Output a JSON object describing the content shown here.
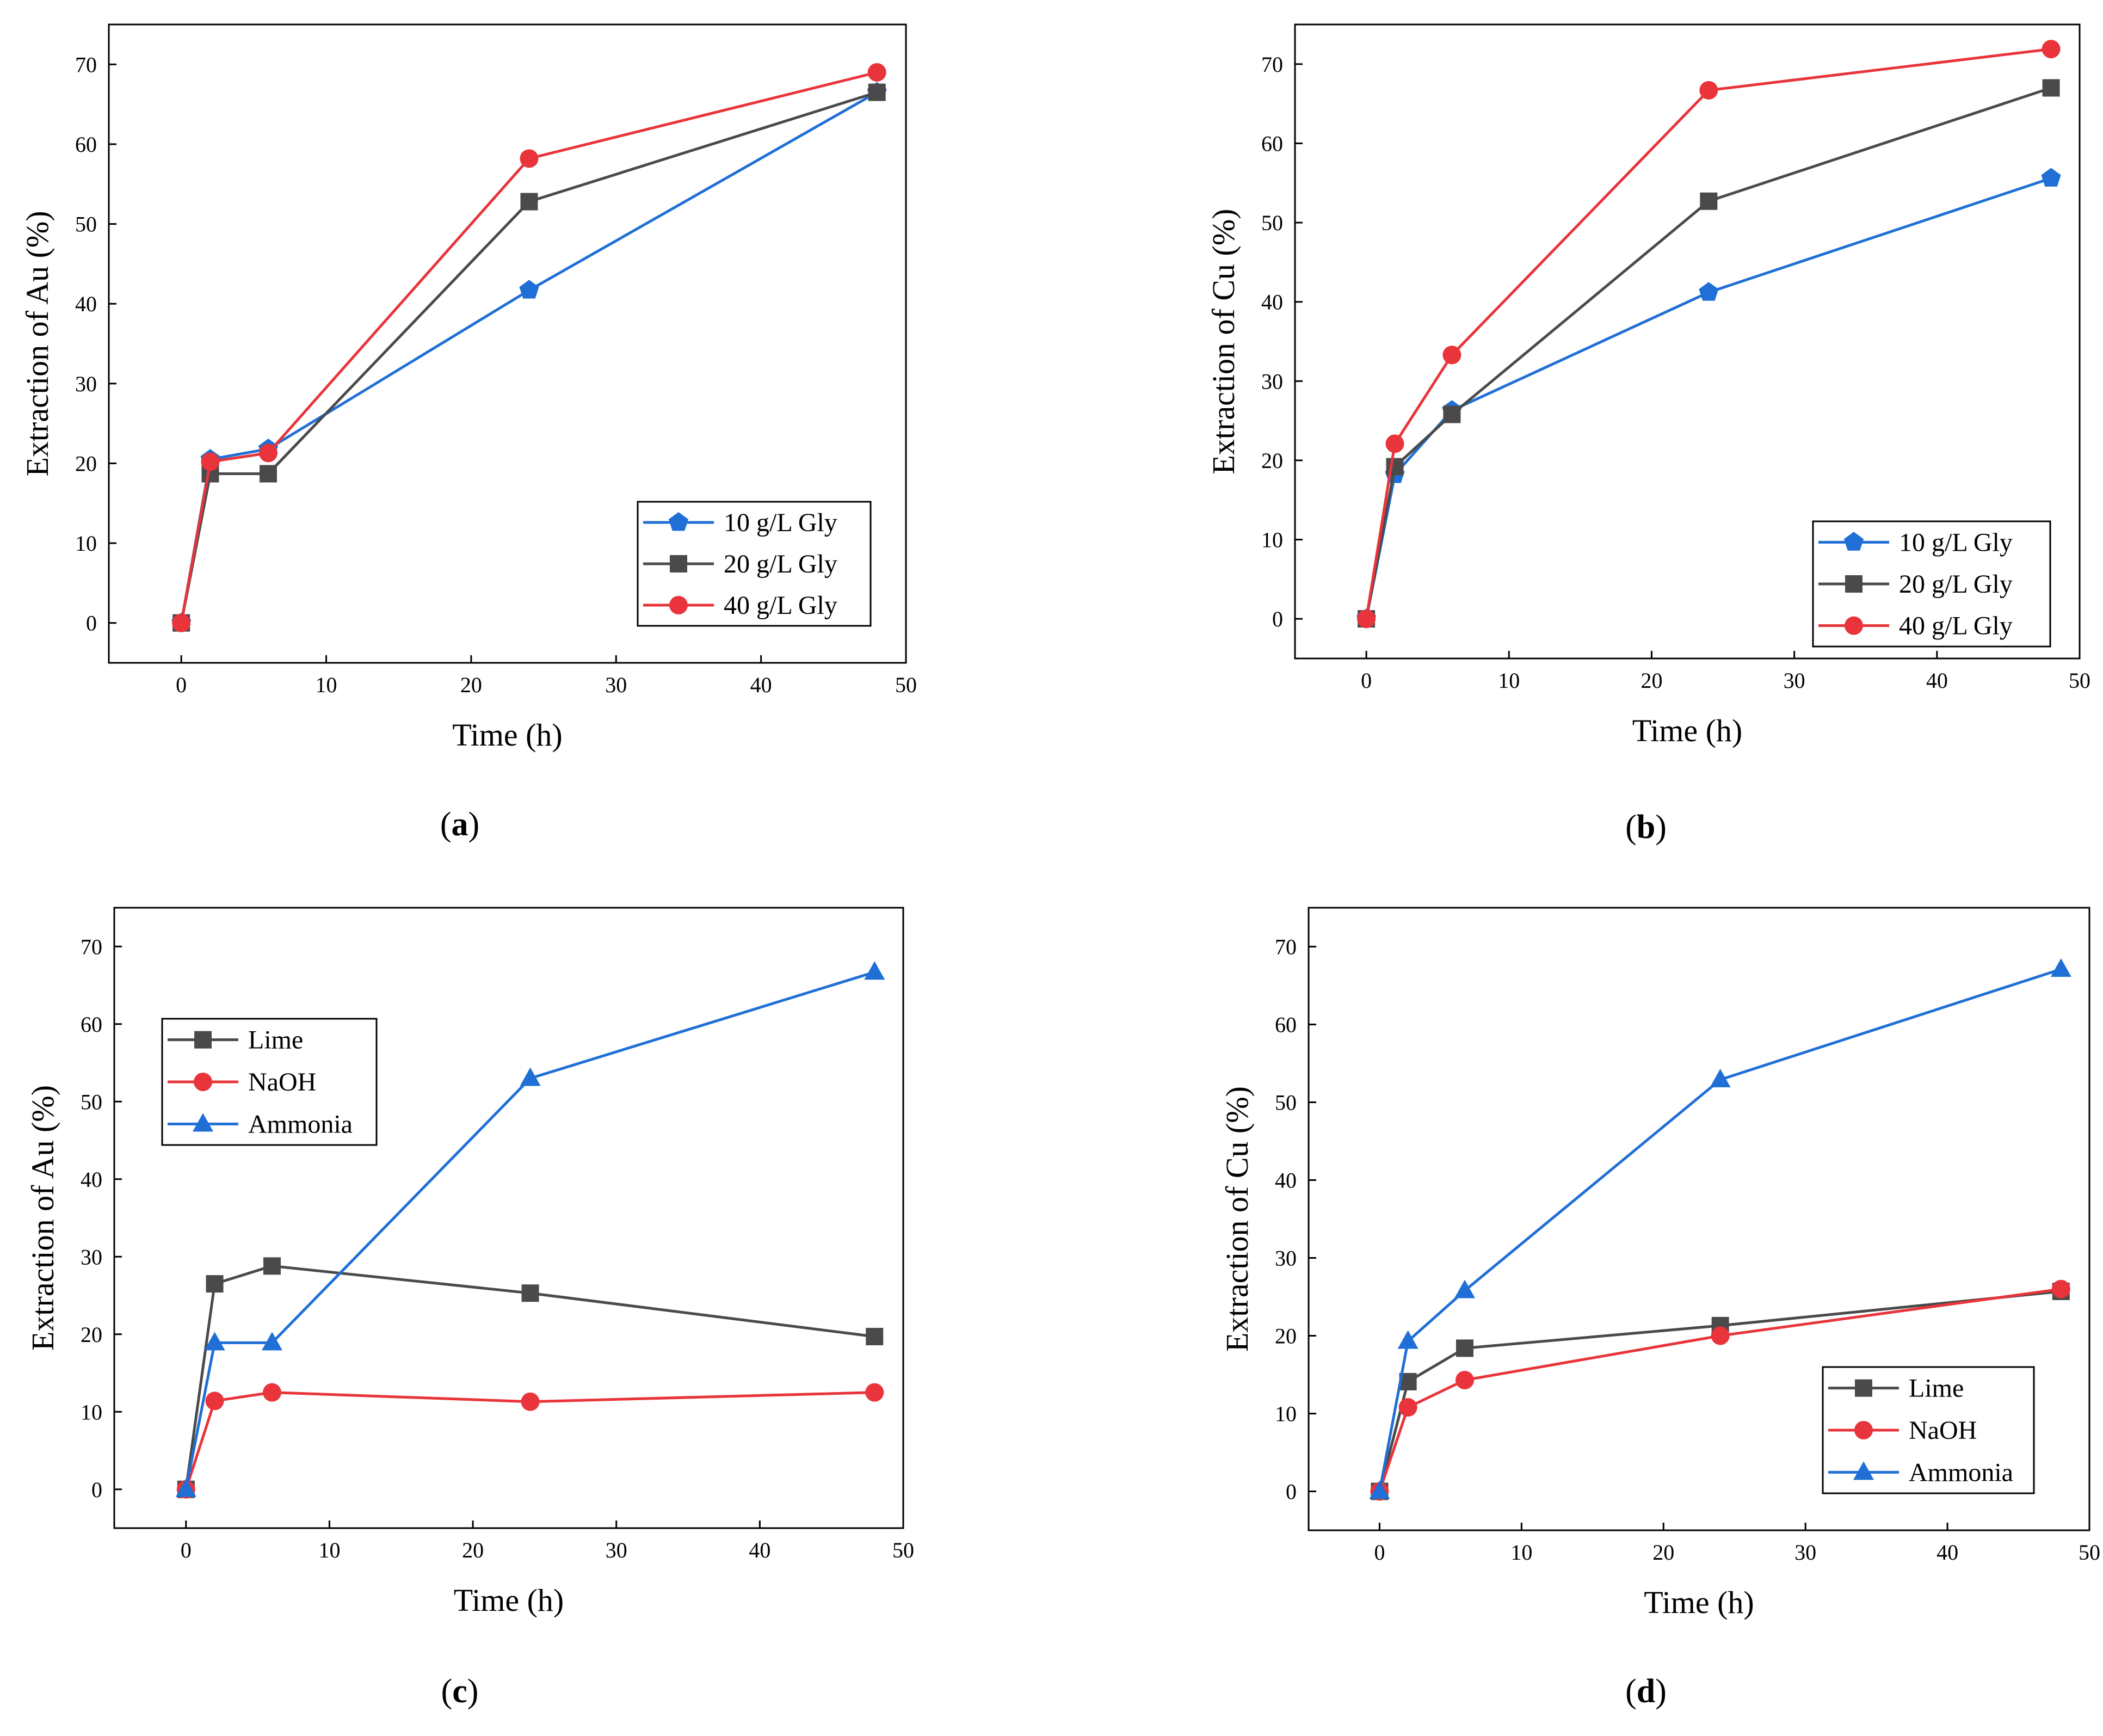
{
  "chart_data": [
    {
      "type": "line",
      "panel_label": "(a)",
      "label_letter": "a",
      "title": "",
      "xlabel": "Time (h)",
      "ylabel": "Extraction of Au (%)",
      "xlim": [
        -5,
        50
      ],
      "ylim": [
        -5,
        75
      ],
      "xticks": [
        0,
        10,
        20,
        30,
        40,
        50
      ],
      "yticks": [
        0,
        10,
        20,
        30,
        40,
        50,
        60,
        70
      ],
      "grid": false,
      "legend_position": "bottom-right",
      "series": [
        {
          "name": "10 g/L Gly",
          "color": "#1f6fd6",
          "marker": "pentagon",
          "x": [
            0,
            2,
            6,
            24,
            48
          ],
          "y": [
            0,
            20.5,
            21.8,
            41.7,
            66.5
          ]
        },
        {
          "name": "20 g/L Gly",
          "color": "#4a4a4a",
          "marker": "square",
          "x": [
            0,
            2,
            6,
            24,
            48
          ],
          "y": [
            0,
            18.7,
            18.7,
            52.8,
            66.5
          ]
        },
        {
          "name": "40 g/L Gly",
          "color": "#e8343a",
          "marker": "circle",
          "x": [
            0,
            2,
            6,
            24,
            48
          ],
          "y": [
            0,
            20.2,
            21.3,
            58.2,
            69.0
          ]
        }
      ]
    },
    {
      "type": "line",
      "panel_label": "(b)",
      "label_letter": "b",
      "title": "",
      "xlabel": "Time (h)",
      "ylabel": "Extraction of Cu (%)",
      "xlim": [
        -5,
        50
      ],
      "ylim": [
        -5,
        75
      ],
      "xticks": [
        0,
        10,
        20,
        30,
        40,
        50
      ],
      "yticks": [
        0,
        10,
        20,
        30,
        40,
        50,
        60,
        70
      ],
      "grid": false,
      "legend_position": "bottom-right",
      "series": [
        {
          "name": "10 g/L Gly",
          "color": "#1f6fd6",
          "marker": "pentagon",
          "x": [
            0,
            2,
            6,
            24,
            48
          ],
          "y": [
            0,
            18.2,
            26.3,
            41.2,
            55.6
          ]
        },
        {
          "name": "20 g/L Gly",
          "color": "#4a4a4a",
          "marker": "square",
          "x": [
            0,
            2,
            6,
            24,
            48
          ],
          "y": [
            0,
            19.2,
            25.8,
            52.7,
            67.0
          ]
        },
        {
          "name": "40 g/L Gly",
          "color": "#e8343a",
          "marker": "circle",
          "x": [
            0,
            2,
            6,
            24,
            48
          ],
          "y": [
            0,
            22.1,
            33.3,
            66.7,
            71.9
          ]
        }
      ]
    },
    {
      "type": "line",
      "panel_label": "(c)",
      "label_letter": "c",
      "title": "",
      "xlabel": "Time (h)",
      "ylabel": "Extraction of Au (%)",
      "xlim": [
        -5,
        50
      ],
      "ylim": [
        -5,
        75
      ],
      "xticks": [
        0,
        10,
        20,
        30,
        40,
        50
      ],
      "yticks": [
        0,
        10,
        20,
        30,
        40,
        50,
        60,
        70
      ],
      "grid": false,
      "legend_position": "top-left",
      "series": [
        {
          "name": "Lime",
          "color": "#4a4a4a",
          "marker": "square",
          "x": [
            0,
            2,
            6,
            24,
            48
          ],
          "y": [
            0,
            26.5,
            28.8,
            25.3,
            19.7
          ]
        },
        {
          "name": "NaOH",
          "color": "#e8343a",
          "marker": "circle",
          "x": [
            0,
            2,
            6,
            24,
            48
          ],
          "y": [
            0,
            11.4,
            12.5,
            11.3,
            12.5
          ]
        },
        {
          "name": "Ammonia",
          "color": "#1f6fd6",
          "marker": "triangle",
          "x": [
            0,
            2,
            6,
            24,
            48
          ],
          "y": [
            0,
            18.9,
            18.9,
            53.0,
            66.7
          ]
        }
      ]
    },
    {
      "type": "line",
      "panel_label": "(d)",
      "label_letter": "d",
      "title": "",
      "xlabel": "Time (h)",
      "ylabel": "Extraction of Cu (%)",
      "xlim": [
        -5,
        50
      ],
      "ylim": [
        -5,
        75
      ],
      "xticks": [
        0,
        10,
        20,
        30,
        40,
        50
      ],
      "yticks": [
        0,
        10,
        20,
        30,
        40,
        50,
        60,
        70
      ],
      "grid": false,
      "legend_position": "bottom-right",
      "series": [
        {
          "name": "Lime",
          "color": "#4a4a4a",
          "marker": "square",
          "x": [
            0,
            2,
            6,
            24,
            48
          ],
          "y": [
            0,
            14.1,
            18.4,
            21.3,
            25.7
          ]
        },
        {
          "name": "NaOH",
          "color": "#e8343a",
          "marker": "circle",
          "x": [
            0,
            2,
            6,
            24,
            48
          ],
          "y": [
            0,
            10.8,
            14.3,
            20.0,
            26.0
          ]
        },
        {
          "name": "Ammonia",
          "color": "#1f6fd6",
          "marker": "triangle",
          "x": [
            0,
            2,
            6,
            24,
            48
          ],
          "y": [
            0,
            19.3,
            25.8,
            52.9,
            67.1
          ]
        }
      ]
    }
  ]
}
